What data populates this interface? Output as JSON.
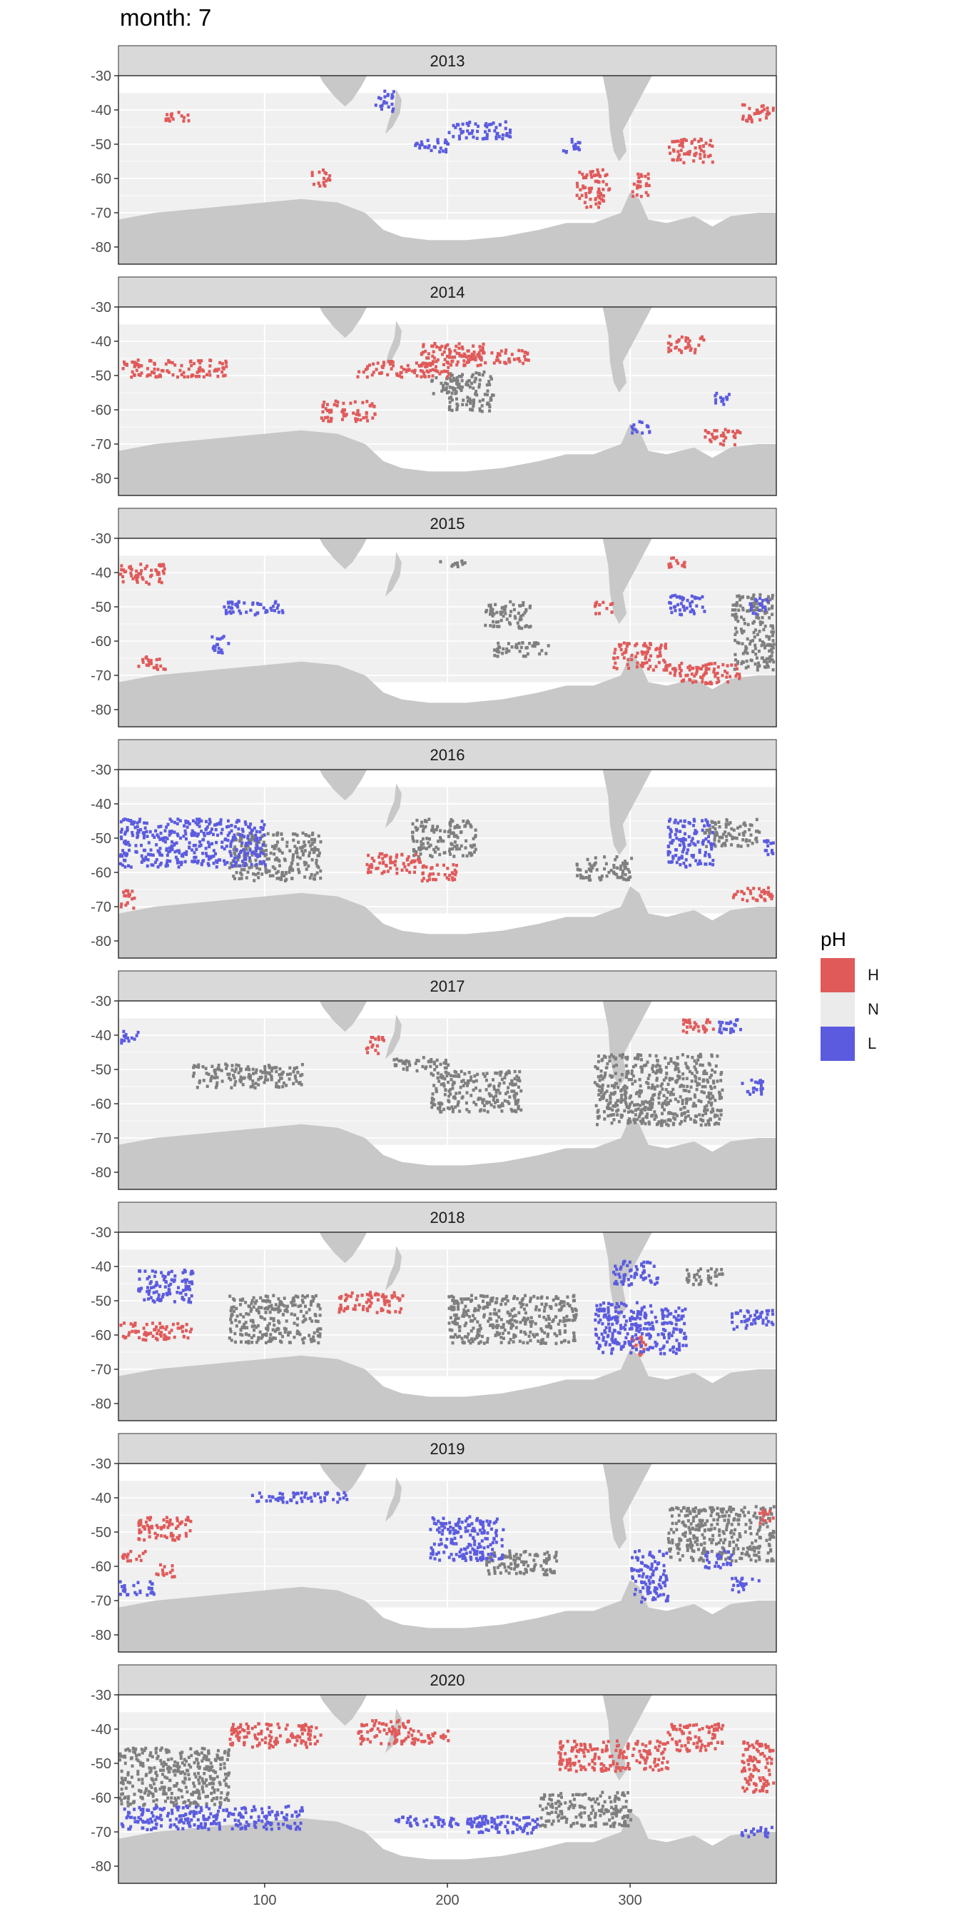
{
  "title": "month: 7",
  "chart_data": {
    "type": "heatmap",
    "xlabel": "",
    "ylabel": "",
    "xlim": [
      20,
      380
    ],
    "ylim": [
      -85,
      -30
    ],
    "x_ticks": [
      100,
      200,
      300
    ],
    "y_ticks": [
      -30,
      -40,
      -50,
      -60,
      -70,
      -80
    ],
    "grid": true,
    "legend": {
      "title": "pH",
      "position": "right",
      "items": [
        {
          "key": "H",
          "label": "H",
          "color": "#E05A5A"
        },
        {
          "key": "N",
          "label": "N",
          "color": "#EBEBEB"
        },
        {
          "key": "L",
          "label": "L",
          "color": "#5B5BE0"
        }
      ]
    },
    "colors": {
      "land": "#C8C8C8",
      "ocean": "#F0F0F0",
      "uncertain": "#7F7F7F",
      "strip": "#D9D9D9"
    },
    "panels": [
      {
        "year": "2013",
        "H": [
          [
            270,
            288,
            -68,
            -57
          ],
          [
            320,
            345,
            -55,
            -48
          ],
          [
            360,
            378,
            -43,
            -38
          ],
          [
            125,
            135,
            -62,
            -57
          ],
          [
            45,
            60,
            -43,
            -40
          ],
          [
            300,
            310,
            -65,
            -58
          ]
        ],
        "L": [
          [
            200,
            235,
            -48,
            -43
          ],
          [
            160,
            170,
            -40,
            -34
          ],
          [
            180,
            200,
            -52,
            -48
          ],
          [
            262,
            272,
            -52,
            -48
          ]
        ],
        "G": []
      },
      {
        "year": "2014",
        "H": [
          [
            185,
            220,
            -47,
            -40
          ],
          [
            208,
            245,
            -46,
            -42
          ],
          [
            130,
            160,
            -63,
            -57
          ],
          [
            150,
            200,
            -50,
            -45
          ],
          [
            20,
            80,
            -50,
            -45
          ],
          [
            320,
            340,
            -43,
            -38
          ],
          [
            340,
            360,
            -70,
            -65
          ]
        ],
        "L": [
          [
            345,
            355,
            -58,
            -54
          ],
          [
            300,
            310,
            -67,
            -63
          ]
        ],
        "G": [
          [
            200,
            225,
            -60,
            -48
          ],
          [
            190,
            205,
            -55,
            -50
          ]
        ]
      },
      {
        "year": "2015",
        "H": [
          [
            20,
            45,
            -43,
            -37
          ],
          [
            30,
            45,
            -68,
            -64
          ],
          [
            290,
            320,
            -68,
            -60
          ],
          [
            320,
            360,
            -72,
            -66
          ],
          [
            280,
            290,
            -52,
            -48
          ],
          [
            320,
            330,
            -38,
            -35
          ]
        ],
        "L": [
          [
            75,
            110,
            -52,
            -48
          ],
          [
            70,
            80,
            -63,
            -58
          ],
          [
            320,
            340,
            -52,
            -46
          ],
          [
            365,
            375,
            -52,
            -47
          ]
        ],
        "G": [
          [
            220,
            245,
            -56,
            -48
          ],
          [
            225,
            255,
            -64,
            -60
          ],
          [
            355,
            378,
            -68,
            -46
          ],
          [
            195,
            210,
            -38,
            -36
          ]
        ]
      },
      {
        "year": "2016",
        "H": [
          [
            155,
            185,
            -60,
            -54
          ],
          [
            20,
            28,
            -70,
            -64
          ],
          [
            355,
            378,
            -68,
            -64
          ],
          [
            185,
            205,
            -62,
            -57
          ]
        ],
        "L": [
          [
            20,
            100,
            -58,
            -44
          ],
          [
            320,
            345,
            -58,
            -44
          ],
          [
            372,
            378,
            -56,
            -50
          ]
        ],
        "G": [
          [
            80,
            130,
            -62,
            -48
          ],
          [
            180,
            215,
            -55,
            -44
          ],
          [
            270,
            300,
            -62,
            -55
          ],
          [
            340,
            370,
            -52,
            -44
          ]
        ]
      },
      {
        "year": "2017",
        "H": [
          [
            325,
            345,
            -39,
            -35
          ],
          [
            155,
            165,
            -45,
            -40
          ]
        ],
        "L": [
          [
            345,
            360,
            -39,
            -35
          ],
          [
            360,
            372,
            -57,
            -52
          ],
          [
            20,
            30,
            -42,
            -38
          ]
        ],
        "G": [
          [
            190,
            240,
            -62,
            -50
          ],
          [
            280,
            350,
            -66,
            -45
          ],
          [
            60,
            120,
            -55,
            -48
          ],
          [
            170,
            200,
            -50,
            -46
          ]
        ]
      },
      {
        "year": "2018",
        "H": [
          [
            140,
            175,
            -53,
            -47
          ],
          [
            20,
            60,
            -61,
            -56
          ],
          [
            300,
            308,
            -66,
            -60
          ]
        ],
        "L": [
          [
            30,
            60,
            -50,
            -40
          ],
          [
            280,
            330,
            -65,
            -50
          ],
          [
            290,
            315,
            -45,
            -38
          ],
          [
            355,
            378,
            -58,
            -52
          ]
        ],
        "G": [
          [
            200,
            270,
            -62,
            -48
          ],
          [
            80,
            130,
            -62,
            -48
          ],
          [
            330,
            350,
            -45,
            -40
          ]
        ]
      },
      {
        "year": "2019",
        "H": [
          [
            30,
            60,
            -52,
            -45
          ],
          [
            40,
            50,
            -63,
            -59
          ],
          [
            370,
            378,
            -47,
            -43
          ],
          [
            20,
            35,
            -58,
            -55
          ]
        ],
        "L": [
          [
            190,
            230,
            -58,
            -45
          ],
          [
            90,
            145,
            -41,
            -38
          ],
          [
            300,
            320,
            -70,
            -55
          ],
          [
            20,
            40,
            -68,
            -64
          ],
          [
            340,
            355,
            -60,
            -55
          ],
          [
            355,
            370,
            -67,
            -63
          ]
        ],
        "G": [
          [
            320,
            378,
            -58,
            -42
          ],
          [
            220,
            260,
            -62,
            -55
          ]
        ]
      },
      {
        "year": "2020",
        "H": [
          [
            150,
            180,
            -44,
            -37
          ],
          [
            260,
            320,
            -52,
            -43
          ],
          [
            320,
            350,
            -46,
            -38
          ],
          [
            80,
            130,
            -45,
            -38
          ],
          [
            180,
            200,
            -44,
            -40
          ],
          [
            360,
            378,
            -58,
            -43
          ]
        ],
        "L": [
          [
            20,
            120,
            -69,
            -62
          ],
          [
            210,
            250,
            -70,
            -65
          ],
          [
            170,
            230,
            -68,
            -65
          ],
          [
            360,
            378,
            -71,
            -68
          ]
        ],
        "G": [
          [
            20,
            80,
            -62,
            -45
          ],
          [
            250,
            300,
            -68,
            -58
          ]
        ]
      }
    ]
  }
}
